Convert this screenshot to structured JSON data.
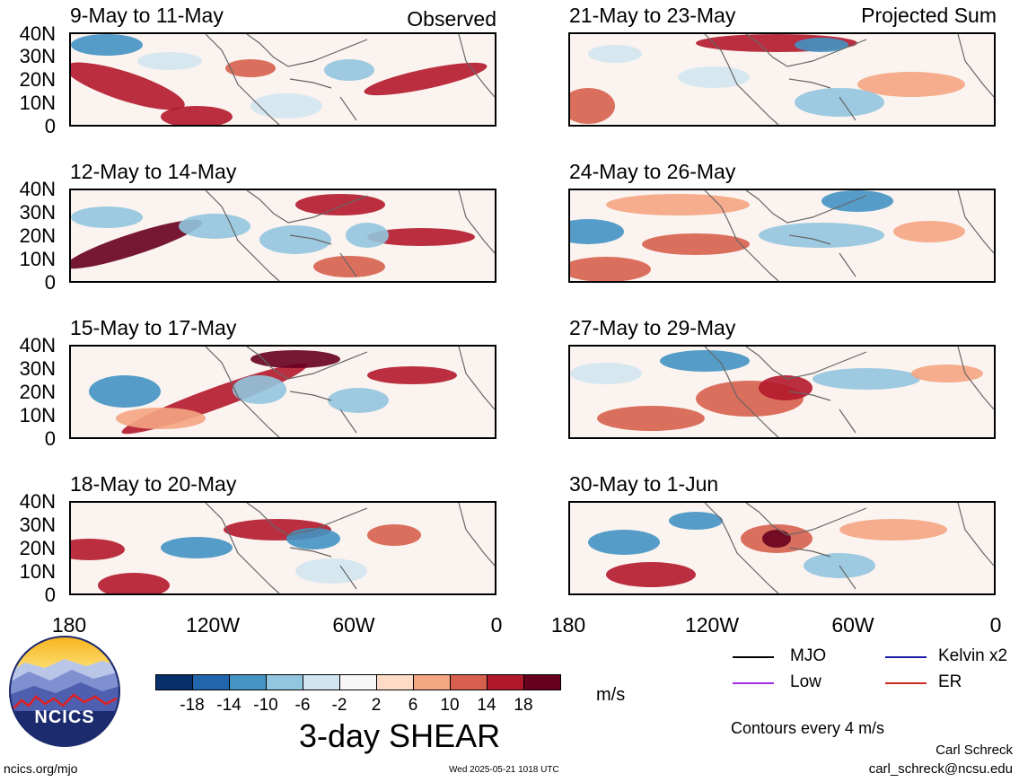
{
  "headers": {
    "left": "Observed",
    "right": "Projected Sum"
  },
  "observed_panels": [
    {
      "date": "9-May to 11-May"
    },
    {
      "date": "12-May to 14-May"
    },
    {
      "date": "15-May to 17-May"
    },
    {
      "date": "18-May to 20-May"
    }
  ],
  "projected_panels": [
    {
      "date": "21-May to 23-May"
    },
    {
      "date": "24-May to 26-May"
    },
    {
      "date": "27-May to 29-May"
    },
    {
      "date": "30-May to 1-Jun"
    }
  ],
  "lat_labels": [
    "40N",
    "30N",
    "20N",
    "10N",
    "0"
  ],
  "lon_labels": [
    "180",
    "120W",
    "60W",
    "0"
  ],
  "colorbar": {
    "ticks": [
      "-18",
      "-14",
      "-10",
      "-6",
      "-2",
      "2",
      "6",
      "10",
      "14",
      "18"
    ],
    "colors": [
      "#08306b",
      "#2166ac",
      "#4393c3",
      "#92c5de",
      "#d1e5f0",
      "#f7f7f7",
      "#fddbc7",
      "#f4a582",
      "#d6604d",
      "#b2182b",
      "#67001f"
    ],
    "units": "m/s",
    "title": "3-day SHEAR"
  },
  "legend": {
    "items": [
      {
        "label": "MJO",
        "color": "#000000"
      },
      {
        "label": "Kelvin x2",
        "color": "#1a1aa8"
      },
      {
        "label": "Low",
        "color": "#a02ee0"
      },
      {
        "label": "ER",
        "color": "#d22a1e"
      }
    ],
    "note": "Contours every 4 m/s"
  },
  "logo": {
    "text": "NCICS"
  },
  "footer": {
    "website": "ncics.org/mjo",
    "timestamp": "Wed 2025-05-21 1018 UTC",
    "author": "Carl Schreck",
    "email": "carl_schreck@ncsu.edu"
  }
}
